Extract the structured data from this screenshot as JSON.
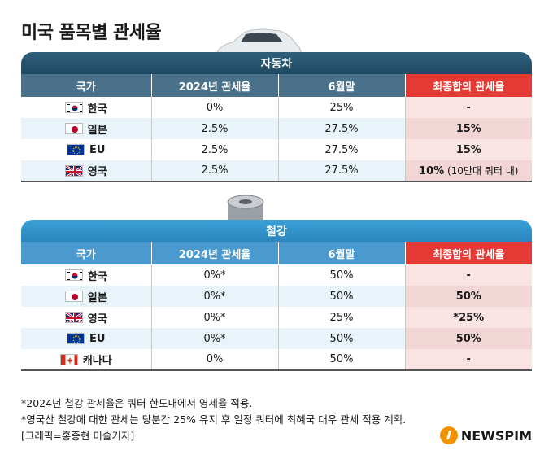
{
  "title": "미국 품목별 관세율",
  "headers": [
    "국가",
    "2024년 관세율",
    "6월말",
    "최종합의 관세율"
  ],
  "car": {
    "label": "자동차",
    "rows": [
      {
        "country": "한국",
        "flag": "kr",
        "r2024": "0%",
        "june": "25%",
        "final": "-",
        "final_note": ""
      },
      {
        "country": "일본",
        "flag": "jp",
        "r2024": "2.5%",
        "june": "27.5%",
        "final": "15%",
        "final_note": ""
      },
      {
        "country": "EU",
        "flag": "eu",
        "r2024": "2.5%",
        "june": "27.5%",
        "final": "15%",
        "final_note": ""
      },
      {
        "country": "영국",
        "flag": "uk",
        "r2024": "2.5%",
        "june": "27.5%",
        "final": "10%",
        "final_note": " (10만대 쿼터 내)"
      }
    ]
  },
  "steel": {
    "label": "철강",
    "rows": [
      {
        "country": "한국",
        "flag": "kr",
        "r2024": "0%*",
        "june": "50%",
        "final": "-"
      },
      {
        "country": "일본",
        "flag": "jp",
        "r2024": "0%*",
        "june": "50%",
        "final": "50%"
      },
      {
        "country": "영국",
        "flag": "uk",
        "r2024": "0%*",
        "june": "25%",
        "final": "*25%"
      },
      {
        "country": "EU",
        "flag": "eu",
        "r2024": "0%*",
        "june": "50%",
        "final": "50%"
      },
      {
        "country": "캐나다",
        "flag": "ca",
        "r2024": "0%",
        "june": "50%",
        "final": "-"
      }
    ]
  },
  "notes": [
    "*2024년 철강 관세율은 쿼터 한도내에서 영세율 적용.",
    "*영국산 철강에 대한 관세는 당분간 25% 유지 후 일정 쿼터에 최혜국 대우 관세 적용 계획.",
    "[그래픽=홍종현 미술기자]"
  ],
  "logo": "NEWSPIM"
}
